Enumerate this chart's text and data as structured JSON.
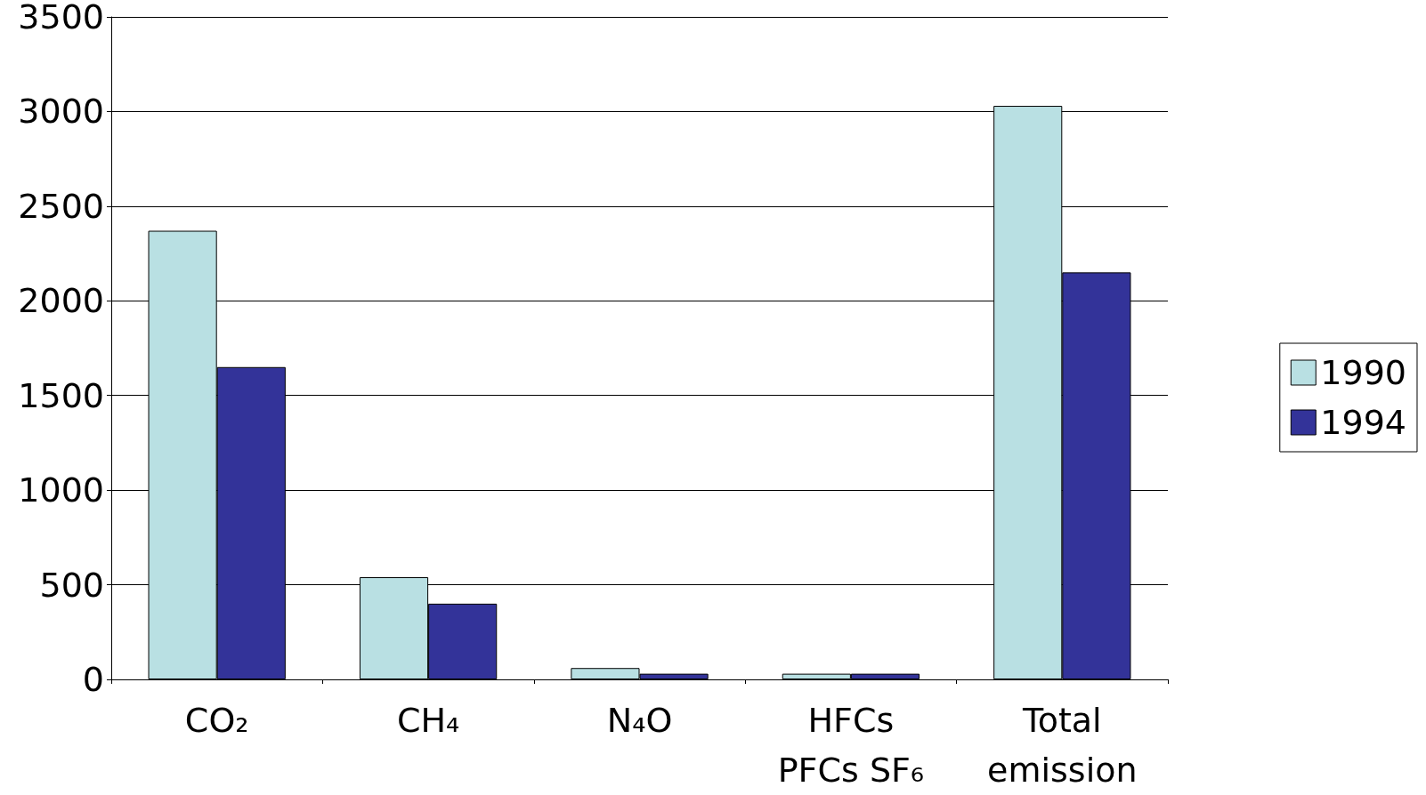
{
  "chart_data": {
    "type": "bar",
    "categories": [
      "CO₂",
      "CH₄",
      "N₄O",
      "HFCs\nPFCs SF₆",
      "Total\nemission"
    ],
    "series": [
      {
        "name": "1990",
        "color": "#b9e0e3",
        "values": [
          2370,
          540,
          60,
          30,
          3030
        ]
      },
      {
        "name": "1994",
        "color": "#333399",
        "values": [
          1650,
          400,
          30,
          30,
          2150
        ]
      }
    ],
    "ylim": [
      0,
      3500
    ],
    "yticks": [
      0,
      500,
      1000,
      1500,
      2000,
      2500,
      3000,
      3500
    ],
    "grid": "y",
    "legend": "right"
  }
}
